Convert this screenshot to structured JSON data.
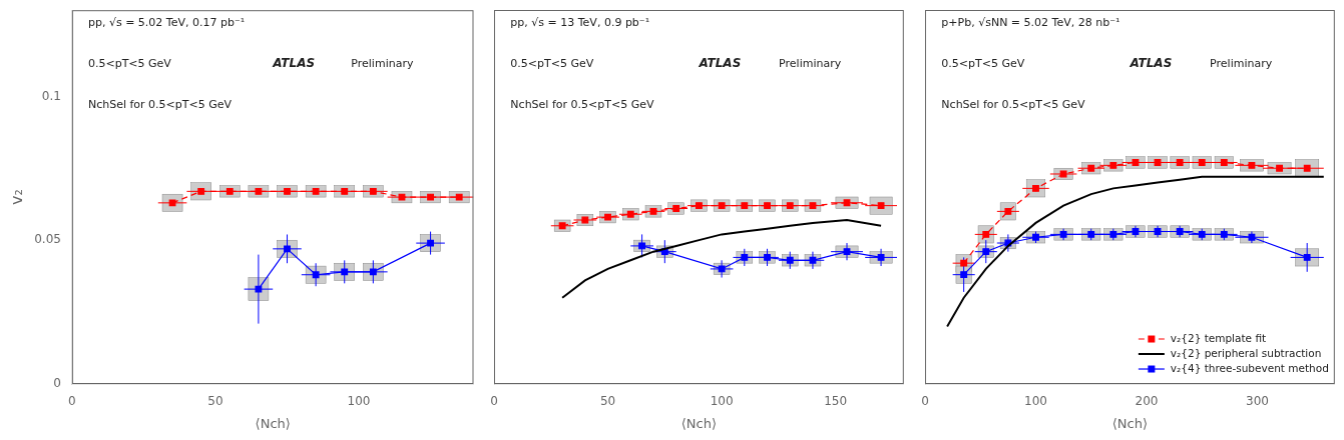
{
  "chart_data": [
    {
      "type": "scatter",
      "xlabel": "⟨Nch⟩",
      "ylabel": "v₂",
      "annotations": [
        "pp, √s = 5.02 TeV, 0.17 pb⁻¹",
        "0.5<pT<5 GeV",
        "ATLAS",
        "Preliminary",
        "NchSel for 0.5<pT<5 GeV"
      ],
      "xlim": [
        0,
        140
      ],
      "xticks": [
        0,
        50,
        100
      ],
      "ylim": [
        0,
        0.13
      ],
      "yticks": [
        0,
        0.05,
        0.1
      ],
      "grid": false,
      "series": [
        {
          "color": "red",
          "line_style": "dashed",
          "marker": "square",
          "x": [
            35,
            45,
            55,
            65,
            75,
            85,
            95,
            105,
            115,
            125,
            135
          ],
          "values": [
            0.063,
            0.067,
            0.067,
            0.067,
            0.067,
            0.067,
            0.067,
            0.067,
            0.065,
            0.065,
            0.065
          ],
          "x_err": [
            5,
            5,
            5,
            5,
            5,
            5,
            5,
            5,
            5,
            5,
            5
          ],
          "y_err": [
            0.001,
            0.001,
            0.001,
            0.001,
            0.001,
            0.001,
            0.001,
            0.001,
            0.001,
            0.001,
            0.001
          ],
          "sys": [
            0.003,
            0.003,
            0.002,
            0.002,
            0.002,
            0.002,
            0.002,
            0.002,
            0.002,
            0.002,
            0.002
          ]
        },
        {
          "color": "blue",
          "line_style": "solid",
          "marker": "square",
          "x": [
            65,
            75,
            85,
            95,
            105,
            125
          ],
          "values": [
            0.033,
            0.047,
            0.038,
            0.039,
            0.039,
            0.049
          ],
          "x_err": [
            5,
            5,
            5,
            5,
            5,
            5
          ],
          "y_err": [
            0.012,
            0.005,
            0.004,
            0.004,
            0.004,
            0.004
          ],
          "sys": [
            0.004,
            0.003,
            0.003,
            0.003,
            0.003,
            0.003
          ]
        }
      ]
    },
    {
      "type": "scatter",
      "xlabel": "⟨Nch⟩",
      "annotations": [
        "pp, √s = 13 TeV, 0.9 pb⁻¹",
        "0.5<pT<5 GeV",
        "ATLAS",
        "Preliminary",
        "NchSel for 0.5<pT<5 GeV"
      ],
      "xlim": [
        0,
        180
      ],
      "xticks": [
        0,
        50,
        100,
        150
      ],
      "ylim": [
        0,
        0.13
      ],
      "yticks": [
        0,
        0.05,
        0.1
      ],
      "tick_labels": "x",
      "grid": false,
      "series": [
        {
          "color": "red",
          "line_style": "dashed",
          "marker": "square",
          "x": [
            30,
            40,
            50,
            60,
            70,
            80,
            90,
            100,
            110,
            120,
            130,
            140,
            155,
            170
          ],
          "values": [
            0.055,
            0.057,
            0.058,
            0.059,
            0.06,
            0.061,
            0.062,
            0.062,
            0.062,
            0.062,
            0.062,
            0.062,
            0.063,
            0.062
          ],
          "x_err": [
            5,
            5,
            5,
            5,
            5,
            5,
            5,
            5,
            5,
            5,
            5,
            5,
            7,
            7
          ],
          "y_err": [
            0.001,
            0.001,
            0.001,
            0.001,
            0.001,
            0.001,
            0.001,
            0.001,
            0.001,
            0.001,
            0.001,
            0.001,
            0.001,
            0.001
          ],
          "sys": [
            0.002,
            0.002,
            0.002,
            0.002,
            0.002,
            0.002,
            0.002,
            0.002,
            0.002,
            0.002,
            0.002,
            0.002,
            0.002,
            0.003
          ]
        },
        {
          "color": "black",
          "line_style": "solid",
          "x": [
            30,
            40,
            50,
            60,
            70,
            80,
            90,
            100,
            110,
            120,
            130,
            140,
            155,
            170
          ],
          "values": [
            0.03,
            0.036,
            0.04,
            0.043,
            0.046,
            0.048,
            0.05,
            0.052,
            0.053,
            0.054,
            0.055,
            0.056,
            0.057,
            0.055
          ]
        },
        {
          "color": "blue",
          "line_style": "solid",
          "marker": "square",
          "x": [
            65,
            75,
            100,
            110,
            120,
            130,
            140,
            155,
            170
          ],
          "values": [
            0.048,
            0.046,
            0.04,
            0.044,
            0.044,
            0.043,
            0.043,
            0.046,
            0.044
          ],
          "x_err": [
            5,
            5,
            5,
            5,
            5,
            5,
            5,
            7,
            7
          ],
          "y_err": [
            0.004,
            0.004,
            0.003,
            0.003,
            0.003,
            0.003,
            0.003,
            0.003,
            0.003
          ],
          "sys": [
            0.002,
            0.002,
            0.002,
            0.002,
            0.002,
            0.002,
            0.002,
            0.002,
            0.002
          ]
        }
      ]
    },
    {
      "type": "scatter",
      "xlabel": "⟨Nch⟩",
      "annotations": [
        "p+Pb, √sNN = 5.02 TeV, 28 nb⁻¹",
        "0.5<pT<5 GeV",
        "ATLAS",
        "Preliminary",
        "NchSel for 0.5<pT<5 GeV"
      ],
      "xlim": [
        0,
        370
      ],
      "xticks": [
        0,
        100,
        200,
        300
      ],
      "ylim": [
        0,
        0.13
      ],
      "yticks": [
        0,
        0.05,
        0.1
      ],
      "tick_labels": "x",
      "grid": false,
      "legend": "lower right",
      "series": [
        {
          "name": "v₂{2} template fit",
          "color": "red",
          "line_style": "dashed",
          "marker": "square",
          "x": [
            35,
            55,
            75,
            100,
            125,
            150,
            170,
            190,
            210,
            230,
            250,
            270,
            295,
            320,
            345
          ],
          "values": [
            0.042,
            0.052,
            0.06,
            0.068,
            0.073,
            0.075,
            0.076,
            0.077,
            0.077,
            0.077,
            0.077,
            0.077,
            0.076,
            0.075,
            0.075
          ],
          "x_err": [
            10,
            10,
            10,
            12,
            12,
            12,
            12,
            12,
            12,
            12,
            12,
            12,
            15,
            15,
            15
          ],
          "y_err": [
            0.001,
            0.001,
            0.001,
            0.001,
            0.001,
            0.001,
            0.001,
            0.001,
            0.001,
            0.001,
            0.001,
            0.001,
            0.001,
            0.001,
            0.001
          ],
          "sys": [
            0.003,
            0.003,
            0.003,
            0.003,
            0.002,
            0.002,
            0.002,
            0.002,
            0.002,
            0.002,
            0.002,
            0.002,
            0.002,
            0.002,
            0.003
          ]
        },
        {
          "name": "v₂{2} peripheral subtraction",
          "color": "black",
          "line_style": "solid",
          "x": [
            20,
            35,
            55,
            75,
            100,
            125,
            150,
            170,
            190,
            210,
            230,
            250,
            270,
            295,
            320,
            345,
            360
          ],
          "values": [
            0.02,
            0.03,
            0.04,
            0.048,
            0.056,
            0.062,
            0.066,
            0.068,
            0.069,
            0.07,
            0.071,
            0.072,
            0.072,
            0.072,
            0.072,
            0.072,
            0.072
          ]
        },
        {
          "name": "v₂{4} three-subevent method",
          "color": "blue",
          "line_style": "solid",
          "marker": "square",
          "x": [
            35,
            55,
            75,
            100,
            125,
            150,
            170,
            190,
            210,
            230,
            250,
            270,
            295,
            345
          ],
          "values": [
            0.038,
            0.046,
            0.049,
            0.051,
            0.052,
            0.052,
            0.052,
            0.053,
            0.053,
            0.053,
            0.052,
            0.052,
            0.051,
            0.044
          ],
          "x_err": [
            10,
            10,
            10,
            12,
            12,
            12,
            12,
            12,
            12,
            12,
            12,
            12,
            15,
            15
          ],
          "y_err": [
            0.006,
            0.004,
            0.003,
            0.002,
            0.002,
            0.002,
            0.002,
            0.002,
            0.002,
            0.002,
            0.002,
            0.002,
            0.002,
            0.005
          ],
          "sys": [
            0.003,
            0.002,
            0.002,
            0.002,
            0.002,
            0.002,
            0.002,
            0.002,
            0.002,
            0.002,
            0.002,
            0.002,
            0.002,
            0.003
          ]
        }
      ]
    }
  ]
}
